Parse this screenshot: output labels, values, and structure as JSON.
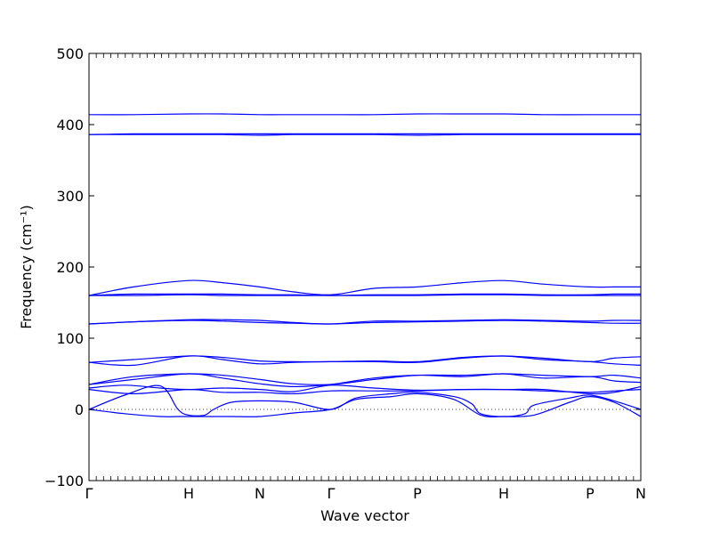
{
  "chart_data": {
    "type": "line",
    "xlabel": "Wave vector",
    "ylabel": "Frequency (cm⁻¹)",
    "ylim": [
      -100,
      500
    ],
    "yticks": [
      -100,
      0,
      100,
      200,
      300,
      400,
      500
    ],
    "xlim": [
      0,
      6.2
    ],
    "xticks": [
      {
        "label": "Γ",
        "x": 0
      },
      {
        "label": "H",
        "x": 1.12
      },
      {
        "label": "N",
        "x": 1.92
      },
      {
        "label": "Γ",
        "x": 2.72
      },
      {
        "label": "P",
        "x": 3.69
      },
      {
        "label": "H",
        "x": 4.66
      },
      {
        "label": "P",
        "x": 5.63
      },
      {
        "label": "N",
        "x": 6.2
      }
    ],
    "zero_line": 0,
    "line_color": "#0000ff",
    "series": [
      {
        "x": [
          0,
          0.4,
          0.8,
          1.0,
          1.12,
          1.3,
          1.6,
          1.92,
          2.3,
          2.72,
          3.0,
          3.4,
          3.69,
          4.1,
          4.4,
          4.66,
          5.0,
          5.4,
          5.63,
          5.9,
          6.2
        ],
        "values": [
          0,
          -6,
          -10,
          -10,
          -10,
          -10,
          -10,
          -10,
          -5,
          0,
          14,
          18,
          22,
          14,
          -8,
          -10,
          -8,
          10,
          18,
          10,
          -10
        ]
      },
      {
        "x": [
          0,
          0.4,
          0.8,
          1.0,
          1.12,
          1.3,
          1.4,
          1.6,
          1.92,
          2.3,
          2.72,
          3.0,
          3.4,
          3.69,
          4.1,
          4.3,
          4.4,
          4.66,
          4.9,
          5.0,
          5.4,
          5.63,
          5.9,
          6.2
        ],
        "values": [
          0,
          20,
          33,
          0,
          -8,
          -8,
          0,
          10,
          12,
          10,
          0,
          16,
          22,
          24,
          18,
          8,
          -6,
          -10,
          -6,
          6,
          16,
          20,
          12,
          0
        ]
      },
      {
        "x": [
          0,
          0.5,
          1.12,
          1.5,
          1.92,
          2.3,
          2.72,
          3.2,
          3.69,
          4.2,
          4.66,
          5.1,
          5.63,
          5.9,
          6.2
        ],
        "values": [
          28,
          22,
          28,
          24,
          24,
          22,
          26,
          26,
          26,
          28,
          28,
          26,
          24,
          26,
          28
        ]
      },
      {
        "x": [
          0,
          0.4,
          0.8,
          1.12,
          1.5,
          1.92,
          2.3,
          2.72,
          3.2,
          3.69,
          4.2,
          4.66,
          5.1,
          5.63,
          5.9,
          6.2
        ],
        "values": [
          30,
          34,
          30,
          28,
          30,
          28,
          25,
          34,
          30,
          27,
          28,
          28,
          28,
          22,
          24,
          32
        ]
      },
      {
        "x": [
          0,
          0.5,
          1.12,
          1.5,
          1.92,
          2.3,
          2.72,
          3.2,
          3.69,
          4.2,
          4.66,
          5.1,
          5.63,
          5.9,
          6.2
        ],
        "values": [
          35,
          42,
          50,
          44,
          36,
          32,
          35,
          44,
          48,
          46,
          50,
          44,
          46,
          40,
          38
        ]
      },
      {
        "x": [
          0,
          0.5,
          1.12,
          1.5,
          1.92,
          2.3,
          2.72,
          3.2,
          3.69,
          4.2,
          4.66,
          5.1,
          5.63,
          5.9,
          6.2
        ],
        "values": [
          35,
          46,
          50,
          48,
          42,
          36,
          35,
          42,
          48,
          48,
          50,
          48,
          46,
          48,
          44
        ]
      },
      {
        "x": [
          0,
          0.5,
          1.12,
          1.5,
          1.92,
          2.3,
          2.72,
          3.2,
          3.69,
          4.2,
          4.66,
          5.1,
          5.63,
          5.9,
          6.2
        ],
        "values": [
          66,
          62,
          75,
          70,
          64,
          66,
          67,
          67,
          66,
          72,
          75,
          70,
          67,
          64,
          62
        ]
      },
      {
        "x": [
          0,
          0.5,
          1.12,
          1.5,
          1.92,
          2.3,
          2.72,
          3.2,
          3.69,
          4.2,
          4.66,
          5.1,
          5.63,
          5.9,
          6.2
        ],
        "values": [
          66,
          70,
          75,
          73,
          68,
          67,
          67,
          68,
          67,
          73,
          75,
          72,
          67,
          72,
          74
        ]
      },
      {
        "x": [
          0,
          0.5,
          1.12,
          1.5,
          1.92,
          2.3,
          2.72,
          3.2,
          3.69,
          4.2,
          4.66,
          5.1,
          5.63,
          5.9,
          6.2
        ],
        "values": [
          120,
          123,
          125,
          124,
          122,
          121,
          120,
          122,
          123,
          124,
          125,
          124,
          122,
          121,
          121
        ]
      },
      {
        "x": [
          0,
          0.5,
          1.12,
          1.5,
          1.92,
          2.3,
          2.72,
          3.2,
          3.69,
          4.2,
          4.66,
          5.1,
          5.63,
          5.9,
          6.2
        ],
        "values": [
          120,
          123,
          126,
          126,
          125,
          122,
          120,
          124,
          124,
          125,
          126,
          125,
          124,
          125,
          125
        ]
      },
      {
        "x": [
          0,
          0.5,
          1.12,
          1.5,
          1.92,
          2.3,
          2.72,
          3.2,
          3.69,
          4.2,
          4.66,
          5.1,
          5.63,
          5.9,
          6.2
        ],
        "values": [
          160,
          160,
          161,
          160,
          160,
          160,
          160,
          160,
          160,
          161,
          161,
          160,
          160,
          160,
          160
        ]
      },
      {
        "x": [
          0,
          0.5,
          1.12,
          1.5,
          1.92,
          2.3,
          2.72,
          3.2,
          3.69,
          4.2,
          4.66,
          5.1,
          5.63,
          5.9,
          6.2
        ],
        "values": [
          160,
          162,
          162,
          162,
          161,
          161,
          160,
          161,
          161,
          162,
          162,
          161,
          161,
          162,
          162
        ]
      },
      {
        "x": [
          0,
          0.5,
          1.12,
          1.5,
          1.92,
          2.3,
          2.72,
          3.2,
          3.69,
          4.2,
          4.66,
          5.1,
          5.63,
          5.9,
          6.2
        ],
        "values": [
          160,
          172,
          181,
          178,
          172,
          165,
          161,
          170,
          172,
          178,
          181,
          176,
          172,
          172,
          172
        ]
      },
      {
        "x": [
          0,
          0.5,
          1.12,
          1.5,
          1.92,
          2.3,
          2.72,
          3.2,
          3.69,
          4.2,
          4.66,
          5.1,
          5.63,
          5.9,
          6.2
        ],
        "values": [
          386,
          386,
          386,
          386,
          385,
          386,
          386,
          386,
          385,
          386,
          386,
          386,
          386,
          386,
          386
        ]
      },
      {
        "x": [
          0,
          0.5,
          1.12,
          1.5,
          1.92,
          2.3,
          2.72,
          3.2,
          3.69,
          4.2,
          4.66,
          5.1,
          5.63,
          5.9,
          6.2
        ],
        "values": [
          386,
          387,
          387,
          387,
          387,
          387,
          387,
          387,
          387,
          387,
          387,
          387,
          387,
          387,
          387
        ]
      },
      {
        "x": [
          0,
          0.5,
          1.12,
          1.5,
          1.92,
          2.3,
          2.72,
          3.2,
          3.69,
          4.2,
          4.66,
          5.1,
          5.63,
          5.9,
          6.2
        ],
        "values": [
          414,
          414,
          415,
          415,
          414,
          414,
          414,
          414,
          415,
          415,
          415,
          414,
          414,
          414,
          414
        ]
      }
    ]
  }
}
